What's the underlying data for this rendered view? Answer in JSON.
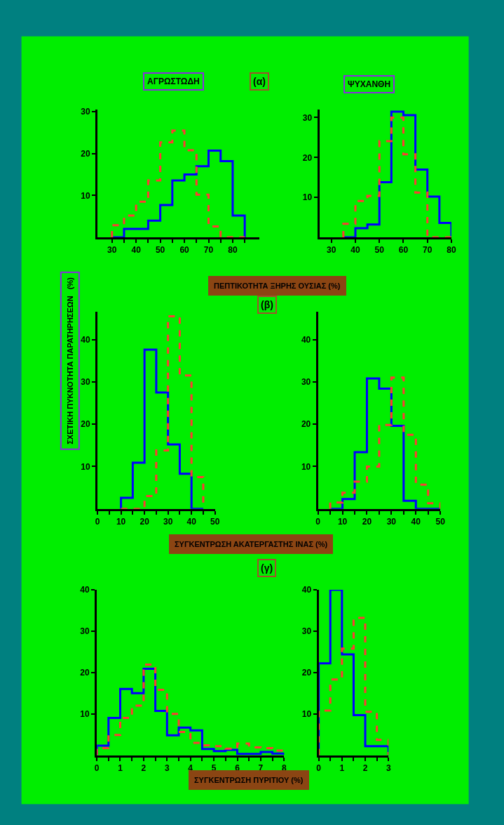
{
  "chart_data": [
    {
      "type": "histogram",
      "title": "ΑΓΡΩΣΤΩΔΗ",
      "subtitle": "(α)",
      "xlabel": "ΠΕΠΤΙΚΟΤΗΤΑ ΞΗΡΗΣ ΟΥΣΙΑΣ (%)",
      "ylabel": "ΣΧΕΤΙΚΗ ΠΥΚΝΟΤΗΤΑ ΠΑΡΑΤΗΡΗΣΕΩΝ   (%)",
      "xlim": [
        24,
        91
      ],
      "ylim": [
        0,
        30.5
      ],
      "xticks": [
        30,
        {
          "value": 35,
          "label": null
        },
        40,
        {
          "value": 45,
          "label": null
        },
        50,
        {
          "value": 55,
          "label": null
        },
        60,
        {
          "value": 65,
          "label": null
        },
        70,
        {
          "value": 75,
          "label": null
        },
        80,
        {
          "value": 85,
          "label": null
        }
      ],
      "yticks": [
        10,
        20,
        30
      ],
      "bins": [
        30,
        35,
        40,
        45,
        50,
        55,
        60,
        65,
        70,
        75,
        80,
        85
      ],
      "series": [
        {
          "color": "#0000ff",
          "line_style": "solid",
          "values": [
            0,
            2,
            2,
            4,
            7.7,
            13.6,
            15,
            17,
            20.7,
            18.2,
            5.2
          ]
        },
        {
          "color": "#ff3b30",
          "line_style": "dashed",
          "values": [
            2.9,
            5.2,
            8.5,
            13.6,
            22.7,
            25.5,
            20.8,
            10.2,
            2.6,
            0,
            0
          ]
        }
      ]
    },
    {
      "type": "histogram",
      "title": "ΨΥΧΑΝΘΗ",
      "xlim": [
        25,
        80
      ],
      "ylim": [
        0,
        32
      ],
      "xticks": [
        30,
        40,
        50,
        60,
        70,
        80
      ],
      "yticks": [
        10,
        20,
        30
      ],
      "bins": [
        35,
        40,
        45,
        50,
        55,
        60,
        65,
        70,
        75,
        80
      ],
      "series": [
        {
          "color": "#0000ff",
          "line_style": "solid",
          "values": [
            0,
            2.3,
            3.2,
            13.8,
            31.5,
            30.6,
            17,
            10.2,
            3.6
          ]
        },
        {
          "color": "#ff3b30",
          "line_style": "dashed",
          "values": [
            3.4,
            9.1,
            10.4,
            24.1,
            30,
            20.8,
            11.2,
            0,
            0
          ]
        }
      ]
    },
    {
      "type": "histogram",
      "xlabel": "ΣΥΓΚΕΝΤΡΩΣΗ ΑΚΑΤΕΡΓΑΣΤΗΣ ΙΝΑΣ (%)",
      "xlim": [
        0,
        50
      ],
      "ylim": [
        0,
        46.5
      ],
      "xticks": [
        0,
        {
          "value": 5,
          "label": null
        },
        10,
        {
          "value": 15,
          "label": null
        },
        20,
        {
          "value": 25,
          "label": null
        },
        30,
        {
          "value": 35,
          "label": null
        },
        40,
        {
          "value": 45,
          "label": null
        },
        50
      ],
      "yticks": [
        10,
        20,
        30,
        40
      ],
      "bins": [
        10,
        15,
        20,
        25,
        30,
        35,
        40,
        45
      ],
      "series": [
        {
          "color": "#0000ff",
          "line_style": "solid",
          "values": [
            2.6,
            10.9,
            37.6,
            27.5,
            15.2,
            8.3,
            0
          ]
        },
        {
          "color": "#ff3b30",
          "line_style": "dashed",
          "values": [
            0,
            0,
            3,
            13.8,
            45.5,
            31.5,
            7.5
          ]
        }
      ]
    },
    {
      "type": "histogram",
      "subtitle": "(β)",
      "xlim": [
        0,
        50
      ],
      "ylim": [
        0,
        46.5
      ],
      "xticks": [
        0,
        {
          "value": 5,
          "label": null
        },
        10,
        {
          "value": 15,
          "label": null
        },
        20,
        {
          "value": 25,
          "label": null
        },
        30,
        {
          "value": 35,
          "label": null
        },
        40,
        {
          "value": 45,
          "label": null
        },
        50
      ],
      "yticks": [
        10,
        20,
        30,
        40
      ],
      "bins": [
        5,
        10,
        15,
        20,
        25,
        30,
        35,
        40,
        45,
        50
      ],
      "series": [
        {
          "color": "#0000ff",
          "line_style": "solid",
          "values": [
            0,
            2.3,
            13.4,
            30.8,
            28.4,
            19.6,
            1.9,
            0,
            0
          ]
        },
        {
          "color": "#ff3b30",
          "line_style": "dashed",
          "values": [
            1.5,
            3.8,
            6.4,
            10,
            19.8,
            31,
            17.5,
            5.7,
            1.3
          ]
        }
      ]
    },
    {
      "type": "histogram",
      "subtitle": "(γ)",
      "xlabel": "ΣΥΓΚΕΝΤΡΩΣΗ ΠΥΡΙΤΙΟΥ (%)",
      "xlim": [
        0,
        8
      ],
      "ylim": [
        0,
        40
      ],
      "xticks": [
        0,
        {
          "value": 0.5,
          "label": null
        },
        1,
        {
          "value": 1.5,
          "label": null
        },
        2,
        {
          "value": 2.5,
          "label": null
        },
        3,
        {
          "value": 3.5,
          "label": null
        },
        4,
        {
          "value": 4.5,
          "label": null
        },
        5,
        {
          "value": 5.5,
          "label": null
        },
        6,
        {
          "value": 6.5,
          "label": null
        },
        7,
        {
          "value": 7.5,
          "label": null
        },
        8
      ],
      "yticks": [
        10,
        20,
        30,
        40
      ],
      "bins": [
        0,
        0.5,
        1,
        1.5,
        2,
        2.5,
        3,
        3.5,
        4,
        4.5,
        5,
        5.5,
        6,
        6.5,
        7,
        7.5,
        8
      ],
      "series": [
        {
          "color": "#0000ff",
          "line_style": "solid",
          "values": [
            2.3,
            9,
            16,
            15,
            20.9,
            10.7,
            4.8,
            6.7,
            6,
            1.5,
            1,
            1.3,
            0.3,
            0.3,
            0.8,
            0.4
          ]
        },
        {
          "color": "#ff3b30",
          "line_style": "dashed",
          "values": [
            1.7,
            4.9,
            9,
            12,
            21.9,
            15.8,
            10,
            5.6,
            3,
            2.4,
            2.2,
            1.6,
            2.8,
            1.9,
            1.7,
            1.1
          ]
        }
      ]
    },
    {
      "type": "histogram",
      "xlim": [
        0,
        3
      ],
      "ylim": [
        0,
        40
      ],
      "xticks": [
        0,
        {
          "value": 0.5,
          "label": null
        },
        1,
        {
          "value": 1.5,
          "label": null
        },
        2,
        {
          "value": 2.5,
          "label": null
        },
        3
      ],
      "yticks": [
        10,
        20,
        30,
        40
      ],
      "bins": [
        0,
        0.5,
        1,
        1.5,
        2,
        2.5,
        3
      ],
      "series": [
        {
          "color": "#0000ff",
          "line_style": "solid",
          "values": [
            22.2,
            40,
            24.4,
            9.7,
            2.2,
            2.2
          ]
        },
        {
          "color": "#ff3b30",
          "line_style": "dashed",
          "values": [
            10.8,
            18.3,
            25.8,
            33.2,
            10.5,
            3.7
          ]
        }
      ]
    }
  ]
}
